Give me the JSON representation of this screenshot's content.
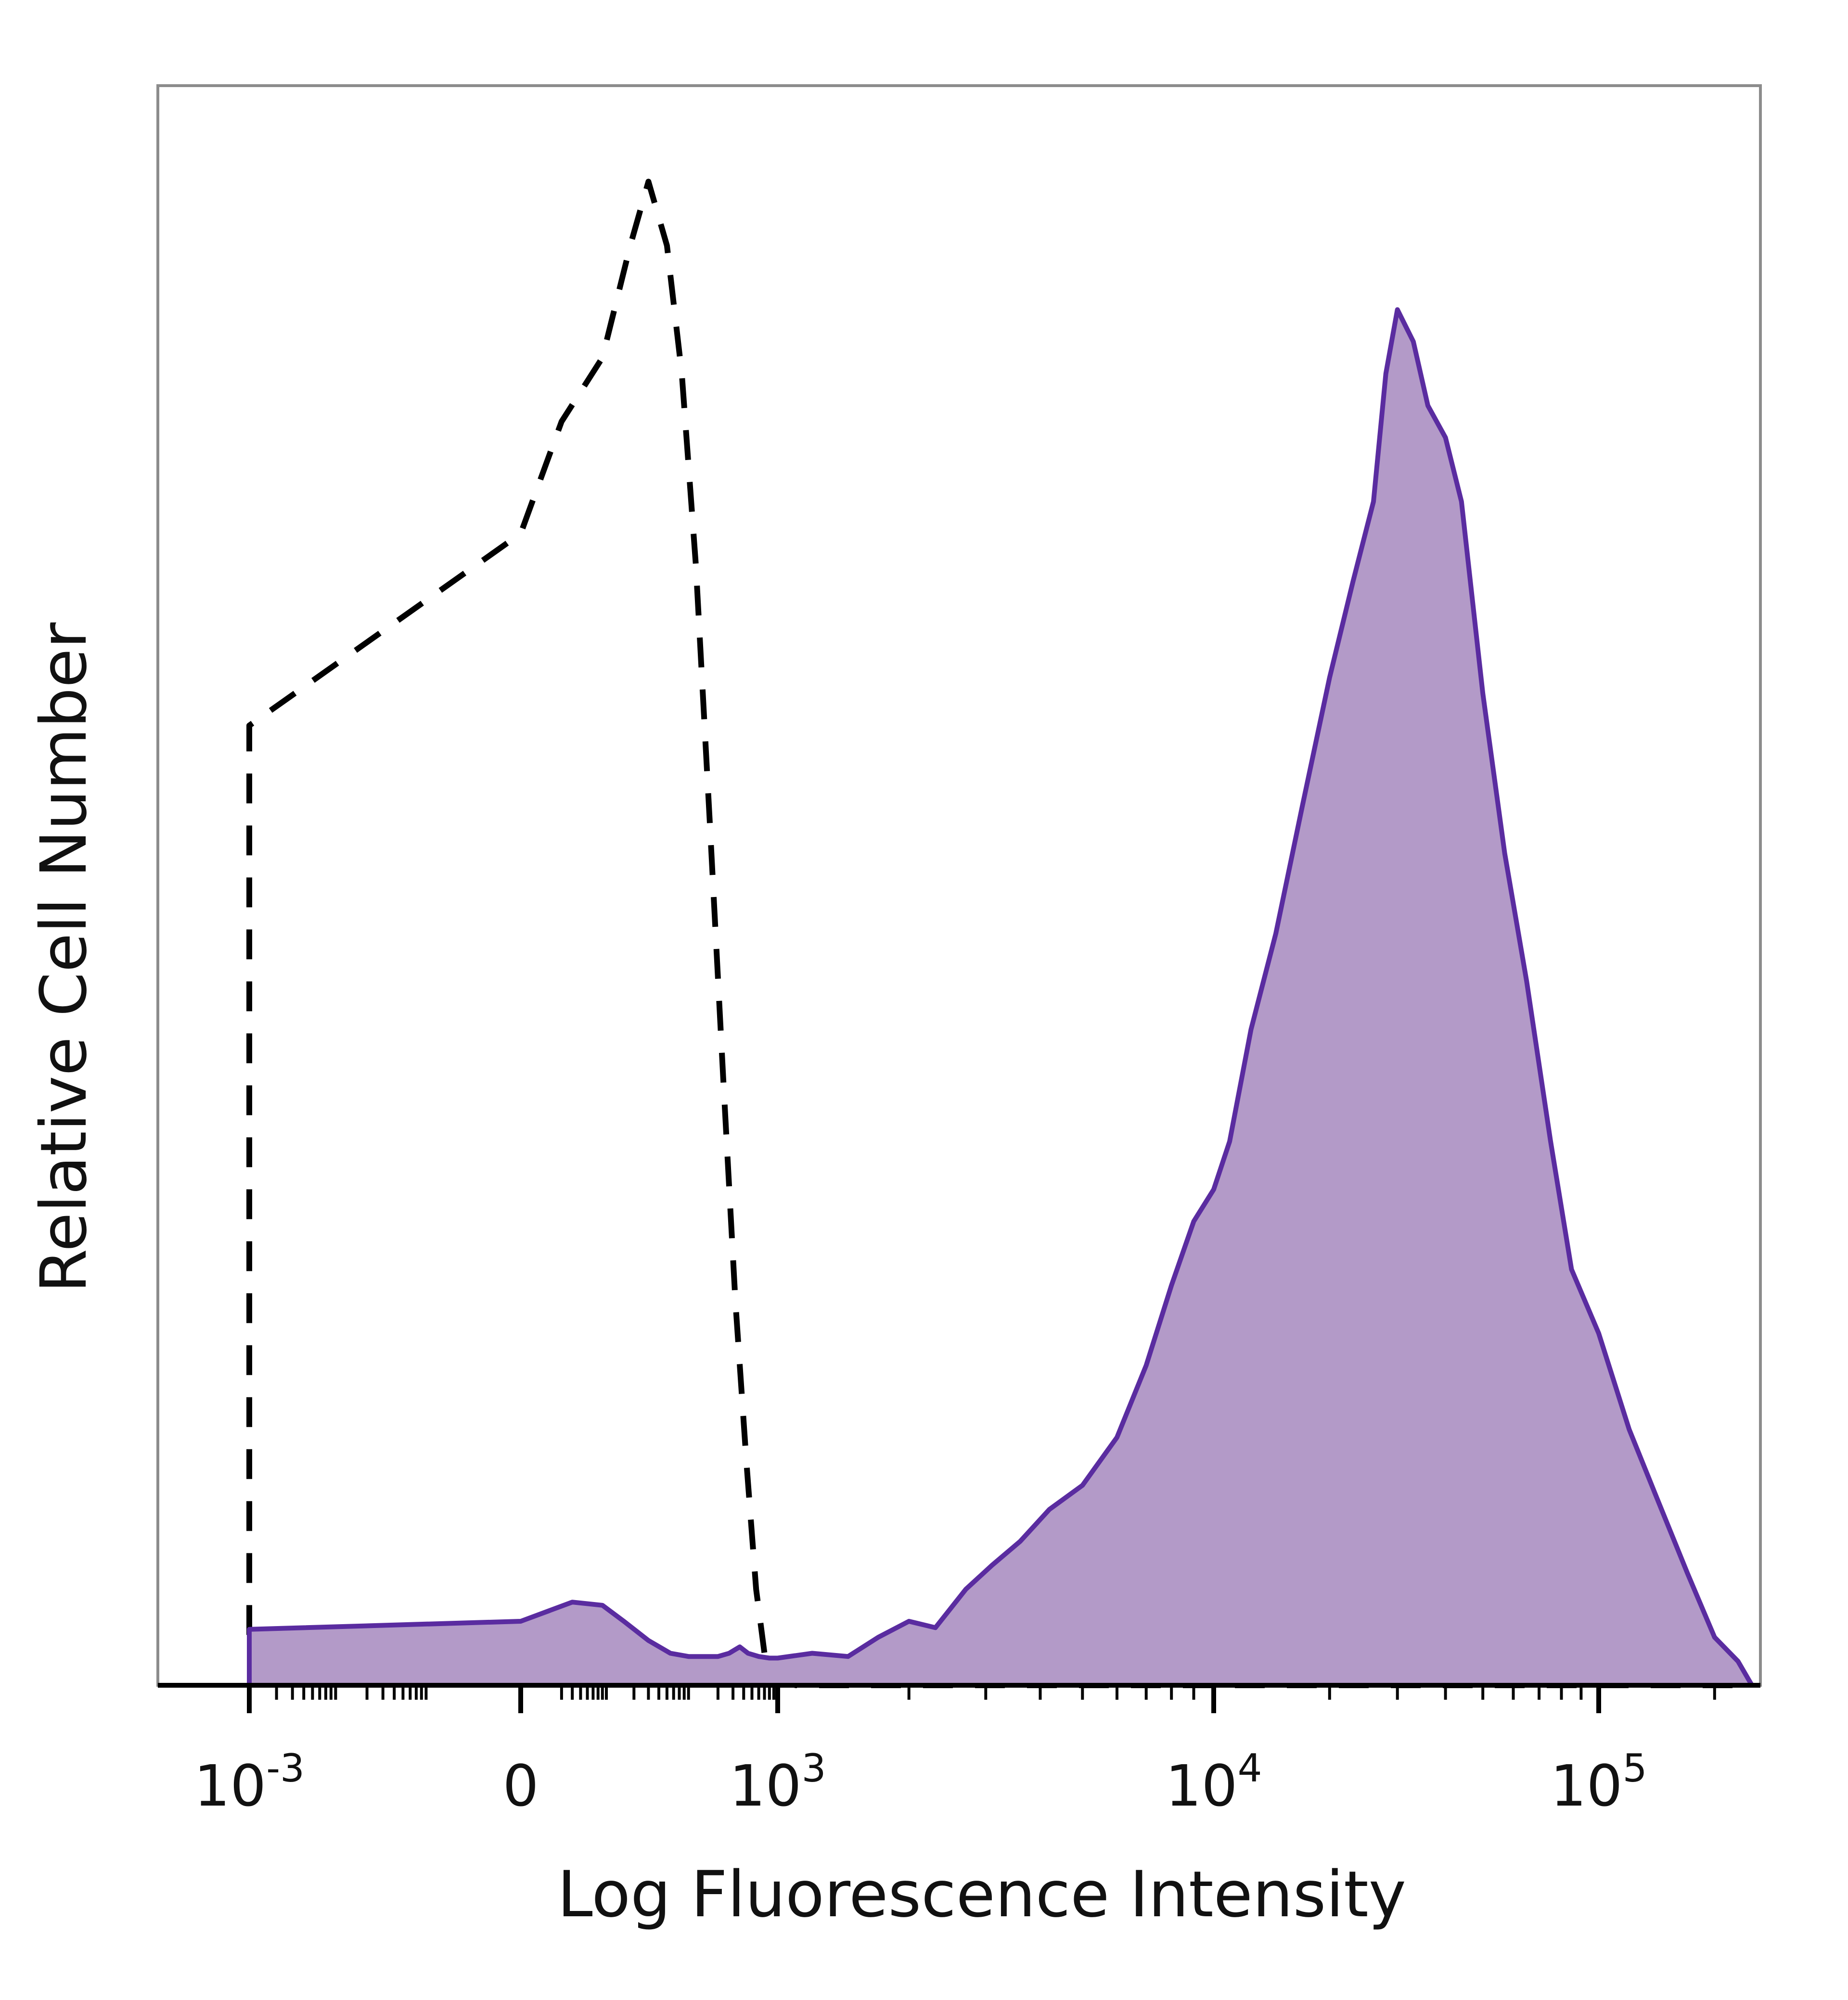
{
  "chart_data": {
    "type": "area",
    "xlabel": "Log Fluorescence Intensity",
    "ylabel": "Relative Cell Number",
    "x_scale": "biexponential",
    "grid": false,
    "x_ticks": [
      {
        "value": -0.001,
        "base": "10",
        "exp": "-3"
      },
      {
        "value": 0,
        "base": "0",
        "exp": ""
      },
      {
        "value": 1000,
        "base": "10",
        "exp": "3"
      },
      {
        "value": 10000,
        "base": "10",
        "exp": "4"
      },
      {
        "value": 100000,
        "base": "10",
        "exp": "5"
      }
    ],
    "ylim": [
      0,
      1
    ],
    "series": [
      {
        "style": "dashed",
        "fill": "none",
        "stroke": "#000000",
        "points": [
          [
            -0.0013,
            0.0
          ],
          [
            -0.0009,
            0.02
          ],
          [
            -0.0005,
            0.08
          ],
          [
            -0.0002,
            0.2
          ],
          [
            -0.0001,
            0.32
          ],
          [
            -3e-05,
            0.48
          ],
          [
            -5e-06,
            0.6
          ],
          [
            0,
            0.72
          ],
          [
            2,
            0.79
          ],
          [
            8,
            0.83
          ],
          [
            18,
            0.9
          ],
          [
            30,
            0.94
          ],
          [
            50,
            0.9
          ],
          [
            75,
            0.82
          ],
          [
            110,
            0.7
          ],
          [
            160,
            0.54
          ],
          [
            230,
            0.38
          ],
          [
            320,
            0.24
          ],
          [
            430,
            0.14
          ],
          [
            560,
            0.06
          ],
          [
            700,
            0.02
          ],
          [
            860,
            0.005
          ],
          [
            1100,
            0.0
          ],
          [
            250000,
            0.0
          ]
        ]
      },
      {
        "style": "solid",
        "fill": "#b39ac8",
        "stroke": "#5a2ca0",
        "points": [
          [
            -0.0015,
            0.0
          ],
          [
            -0.001,
            0.0
          ],
          [
            -0.0005,
            0.008
          ],
          [
            -5e-05,
            0.02
          ],
          [
            -2e-06,
            0.035
          ],
          [
            0,
            0.04
          ],
          [
            3,
            0.052
          ],
          [
            8,
            0.05
          ],
          [
            15,
            0.04
          ],
          [
            30,
            0.028
          ],
          [
            55,
            0.02
          ],
          [
            90,
            0.018
          ],
          [
            140,
            0.018
          ],
          [
            200,
            0.018
          ],
          [
            270,
            0.02
          ],
          [
            360,
            0.024
          ],
          [
            450,
            0.02
          ],
          [
            600,
            0.018
          ],
          [
            800,
            0.017
          ],
          [
            1000,
            0.017
          ],
          [
            1200,
            0.02
          ],
          [
            1450,
            0.018
          ],
          [
            1700,
            0.03
          ],
          [
            2000,
            0.04
          ],
          [
            2300,
            0.036
          ],
          [
            2700,
            0.06
          ],
          [
            3100,
            0.075
          ],
          [
            3600,
            0.09
          ],
          [
            4200,
            0.11
          ],
          [
            5000,
            0.125
          ],
          [
            6000,
            0.155
          ],
          [
            7000,
            0.2
          ],
          [
            8000,
            0.25
          ],
          [
            9000,
            0.29
          ],
          [
            10000,
            0.31
          ],
          [
            11000,
            0.34
          ],
          [
            12500,
            0.41
          ],
          [
            14500,
            0.47
          ],
          [
            17000,
            0.55
          ],
          [
            20000,
            0.63
          ],
          [
            23000,
            0.69
          ],
          [
            26000,
            0.74
          ],
          [
            28000,
            0.82
          ],
          [
            30000,
            0.86
          ],
          [
            33000,
            0.84
          ],
          [
            36000,
            0.8
          ],
          [
            40000,
            0.78
          ],
          [
            44000,
            0.74
          ],
          [
            50000,
            0.62
          ],
          [
            57000,
            0.52
          ],
          [
            65000,
            0.44
          ],
          [
            75000,
            0.34
          ],
          [
            85000,
            0.26
          ],
          [
            100000,
            0.22
          ],
          [
            120000,
            0.16
          ],
          [
            140000,
            0.12
          ],
          [
            170000,
            0.07
          ],
          [
            200000,
            0.03
          ],
          [
            230000,
            0.015
          ],
          [
            250000,
            0.0
          ]
        ]
      }
    ]
  }
}
